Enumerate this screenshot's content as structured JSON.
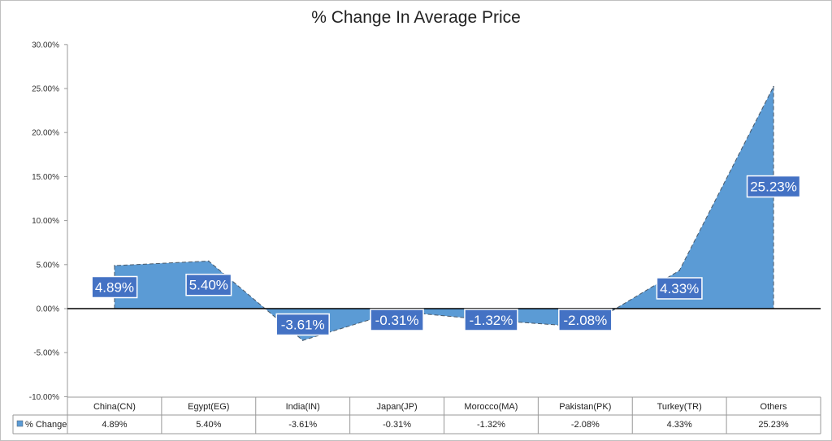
{
  "chart_data": {
    "type": "area",
    "title": "% Change In Average Price",
    "categories": [
      "China(CN)",
      "Egypt(EG)",
      "India(IN)",
      "Japan(JP)",
      "Morocco(MA)",
      "Pakistan(PK)",
      "Turkey(TR)",
      "Others"
    ],
    "series": [
      {
        "name": "% Change",
        "values": [
          4.89,
          5.4,
          -3.61,
          -0.31,
          -1.32,
          -2.08,
          4.33,
          25.23
        ],
        "data_labels": [
          "4.89%",
          "5.40%",
          "-3.61%",
          "-0.31%",
          "-1.32%",
          "-2.08%",
          "4.33%",
          "25.23%"
        ],
        "color": "#5b9bd5"
      }
    ],
    "ylim": [
      -10,
      30
    ],
    "yticks": [
      30,
      25,
      20,
      15,
      10,
      5,
      0,
      -5,
      -10
    ],
    "ytick_labels": [
      "30.00%",
      "25.00%",
      "20.00%",
      "15.00%",
      "10.00%",
      "5.00%",
      "0.00%",
      "-5.00%",
      "-10.00%"
    ],
    "data_table": true,
    "legend_key_label": "% Change",
    "label_box_color": "#4472c4",
    "grid": false
  }
}
